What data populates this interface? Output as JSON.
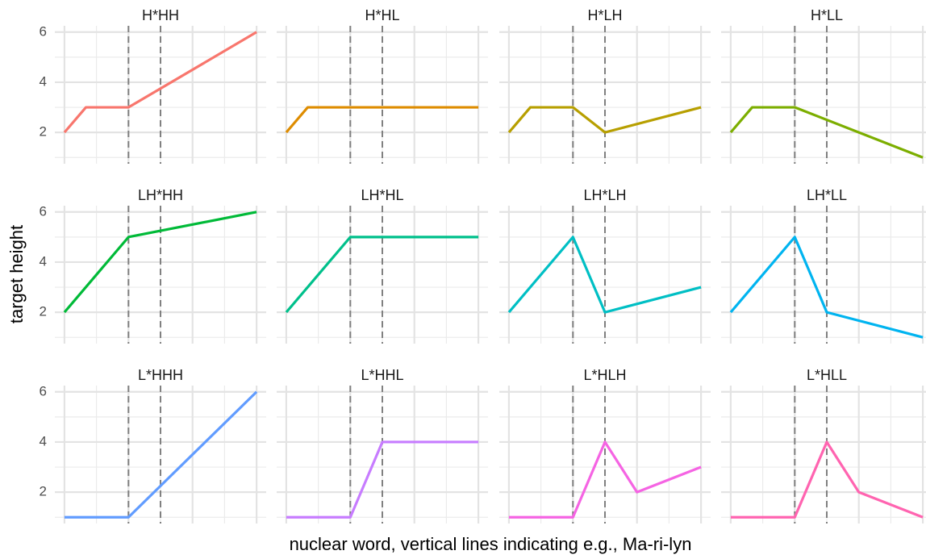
{
  "chart_data": {
    "type": "line",
    "x_label": "nuclear word, vertical lines indicating e.g., Ma-ri-lyn",
    "y_label": "target height",
    "xlim": [
      -0.3,
      6.3
    ],
    "ylim": [
      0.75,
      6.25
    ],
    "xticks": [
      0,
      2,
      4,
      6
    ],
    "yticks": [
      2,
      4,
      6
    ],
    "vlines": [
      2,
      3
    ],
    "grid": true,
    "panels": [
      {
        "title": "H*HH",
        "color": "#F8766D",
        "x": [
          0,
          0.67,
          2,
          6
        ],
        "values": [
          2,
          3,
          3,
          6
        ]
      },
      {
        "title": "H*HL",
        "color": "#DE8C00",
        "x": [
          0,
          0.67,
          6
        ],
        "values": [
          2,
          3,
          3
        ]
      },
      {
        "title": "H*LH",
        "color": "#B79F00",
        "x": [
          0,
          0.67,
          2,
          3,
          6
        ],
        "values": [
          2,
          3,
          3,
          2,
          3
        ]
      },
      {
        "title": "H*LL",
        "color": "#7CAE00",
        "x": [
          0,
          0.67,
          2,
          6
        ],
        "values": [
          2,
          3,
          3,
          1
        ]
      },
      {
        "title": "LH*HH",
        "color": "#00BA38",
        "x": [
          0,
          2,
          6
        ],
        "values": [
          2,
          5,
          6
        ]
      },
      {
        "title": "LH*HL",
        "color": "#00C08B",
        "x": [
          0,
          2,
          6
        ],
        "values": [
          2,
          5,
          5
        ]
      },
      {
        "title": "LH*LH",
        "color": "#00BFC4",
        "x": [
          0,
          2,
          3,
          6
        ],
        "values": [
          2,
          5,
          2,
          3
        ]
      },
      {
        "title": "LH*LL",
        "color": "#00B4F0",
        "x": [
          0,
          2,
          3,
          6
        ],
        "values": [
          2,
          5,
          2,
          1
        ]
      },
      {
        "title": "L*HHH",
        "color": "#619CFF",
        "x": [
          0,
          2,
          6
        ],
        "values": [
          1,
          1,
          6
        ]
      },
      {
        "title": "L*HHL",
        "color": "#C77CFF",
        "x": [
          0,
          2,
          3,
          6
        ],
        "values": [
          1,
          1,
          4,
          4
        ]
      },
      {
        "title": "L*HLH",
        "color": "#F564E3",
        "x": [
          0,
          2,
          3,
          4,
          6
        ],
        "values": [
          1,
          1,
          4,
          2,
          3
        ]
      },
      {
        "title": "L*HLL",
        "color": "#FF64B0",
        "x": [
          0,
          2,
          3,
          4,
          6
        ],
        "values": [
          1,
          1,
          4,
          2,
          1
        ]
      }
    ]
  }
}
